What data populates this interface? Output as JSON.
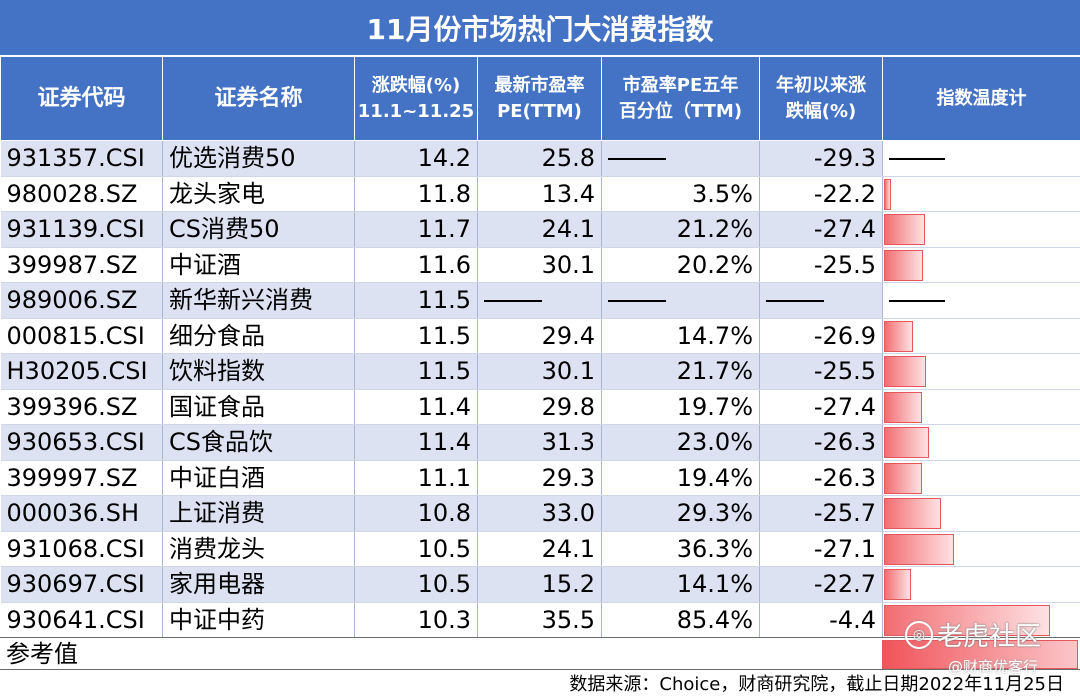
{
  "title": "11月份市场热门大消费指数",
  "headers": {
    "code": "证券代码",
    "name": "证券名称",
    "change": [
      "涨跌幅(%)",
      "11.1~11.25"
    ],
    "pe": [
      "最新市盈率",
      "PE(TTM)"
    ],
    "pe_pct": [
      "市盈率PE五年",
      "百分位（TTM)"
    ],
    "ytd": [
      "年初以来涨",
      "跌幅(%)"
    ],
    "temp": "指数温度计"
  },
  "rows": [
    {
      "code": "931357.CSI",
      "name": "优选消费50",
      "change": "14.2",
      "pe": "25.8",
      "pe_pct": "——",
      "ytd": "-29.3",
      "temp": null
    },
    {
      "code": "980028.SZ",
      "name": "龙头家电",
      "change": "11.8",
      "pe": "13.4",
      "pe_pct": "3.5%",
      "ytd": "-22.2",
      "temp": 0.035
    },
    {
      "code": "931139.CSI",
      "name": "CS消费50",
      "change": "11.7",
      "pe": "24.1",
      "pe_pct": "21.2%",
      "ytd": "-27.4",
      "temp": 0.212
    },
    {
      "code": "399987.SZ",
      "name": "中证酒",
      "change": "11.6",
      "pe": "30.1",
      "pe_pct": "20.2%",
      "ytd": "-25.5",
      "temp": 0.202
    },
    {
      "code": "989006.SZ",
      "name": "新华新兴消费",
      "change": "11.5",
      "pe": "——",
      "pe_pct": "——",
      "ytd": "——",
      "temp": null
    },
    {
      "code": "000815.CSI",
      "name": "细分食品",
      "change": "11.5",
      "pe": "29.4",
      "pe_pct": "14.7%",
      "ytd": "-26.9",
      "temp": 0.147
    },
    {
      "code": "H30205.CSI",
      "name": "饮料指数",
      "change": "11.5",
      "pe": "30.1",
      "pe_pct": "21.7%",
      "ytd": "-25.5",
      "temp": 0.217
    },
    {
      "code": "399396.SZ",
      "name": "国证食品",
      "change": "11.4",
      "pe": "29.8",
      "pe_pct": "19.7%",
      "ytd": "-27.4",
      "temp": 0.197
    },
    {
      "code": "930653.CSI",
      "name": "CS食品饮",
      "change": "11.4",
      "pe": "31.3",
      "pe_pct": "23.0%",
      "ytd": "-26.3",
      "temp": 0.23
    },
    {
      "code": "399997.SZ",
      "name": "中证白酒",
      "change": "11.1",
      "pe": "29.3",
      "pe_pct": "19.4%",
      "ytd": "-26.3",
      "temp": 0.194
    },
    {
      "code": "000036.SH",
      "name": "上证消费",
      "change": "10.8",
      "pe": "33.0",
      "pe_pct": "29.3%",
      "ytd": "-25.7",
      "temp": 0.293
    },
    {
      "code": "931068.CSI",
      "name": "消费龙头",
      "change": "10.5",
      "pe": "24.1",
      "pe_pct": "36.3%",
      "ytd": "-27.1",
      "temp": 0.363
    },
    {
      "code": "930697.CSI",
      "name": "家用电器",
      "change": "10.5",
      "pe": "15.2",
      "pe_pct": "14.1%",
      "ytd": "-22.7",
      "temp": 0.141
    },
    {
      "code": "930641.CSI",
      "name": "中证中药",
      "change": "10.3",
      "pe": "35.5",
      "pe_pct": "85.4%",
      "ytd": "-4.4",
      "temp": 0.854
    }
  ],
  "reference": {
    "label": "参考值",
    "temp": 1.0
  },
  "source": "数据来源：Choice，财商研究院，截止日期2022年11月25日",
  "watermark": {
    "main": "老虎社区",
    "sub": "@财商优客行",
    "logo": "tiger-logo"
  },
  "colors": {
    "header_bg": "#4472c4",
    "row_alt": "#dde2f2",
    "bar": "#f26d72"
  }
}
